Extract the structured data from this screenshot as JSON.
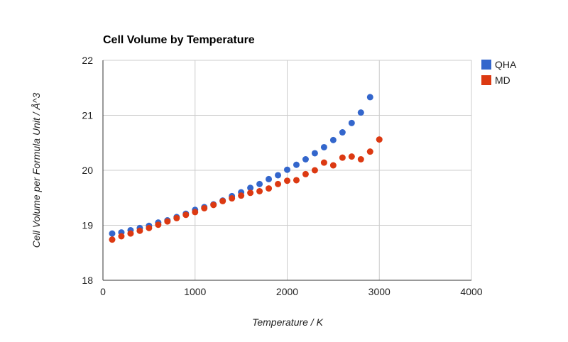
{
  "chart_data": {
    "type": "scatter",
    "title": "Cell Volume by Temperature",
    "xlabel": "Temperature / K",
    "ylabel": "Cell Volume per Formula Unit / Å^3",
    "xlim": [
      0,
      4000
    ],
    "ylim": [
      18,
      22
    ],
    "xticks": [
      "0",
      "1000",
      "2000",
      "3000",
      "4000"
    ],
    "yticks": [
      "18",
      "19",
      "20",
      "21",
      "22"
    ],
    "xtick_values": [
      0,
      1000,
      2000,
      3000,
      4000
    ],
    "ytick_values": [
      18,
      19,
      20,
      21,
      22
    ],
    "grid": true,
    "legend_position": "right",
    "series": [
      {
        "name": "QHA",
        "color": "#3366cc",
        "x": [
          100,
          200,
          300,
          400,
          500,
          600,
          700,
          800,
          900,
          1000,
          1100,
          1200,
          1300,
          1400,
          1500,
          1600,
          1700,
          1800,
          1900,
          2000,
          2100,
          2200,
          2300,
          2400,
          2500,
          2600,
          2700,
          2800,
          2900
        ],
        "y": [
          18.85,
          18.87,
          18.91,
          18.95,
          18.99,
          19.05,
          19.09,
          19.15,
          19.21,
          19.28,
          19.33,
          19.38,
          19.45,
          19.53,
          19.6,
          19.68,
          19.75,
          19.84,
          19.91,
          20.01,
          20.1,
          20.2,
          20.31,
          20.42,
          20.55,
          20.69,
          20.86,
          21.05,
          21.33
        ]
      },
      {
        "name": "MD",
        "color": "#dc3912",
        "x": [
          100,
          200,
          300,
          400,
          500,
          600,
          700,
          800,
          900,
          1000,
          1100,
          1200,
          1300,
          1400,
          1500,
          1600,
          1700,
          1800,
          1900,
          2000,
          2100,
          2200,
          2300,
          2400,
          2500,
          2600,
          2700,
          2800,
          2900,
          3000
        ],
        "y": [
          18.74,
          18.8,
          18.85,
          18.9,
          18.95,
          19.01,
          19.07,
          19.13,
          19.19,
          19.24,
          19.31,
          19.37,
          19.44,
          19.49,
          19.54,
          19.59,
          19.62,
          19.67,
          19.75,
          19.81,
          19.82,
          19.93,
          20.0,
          20.14,
          20.09,
          20.23,
          20.25,
          20.2,
          20.34,
          20.56
        ]
      }
    ]
  }
}
